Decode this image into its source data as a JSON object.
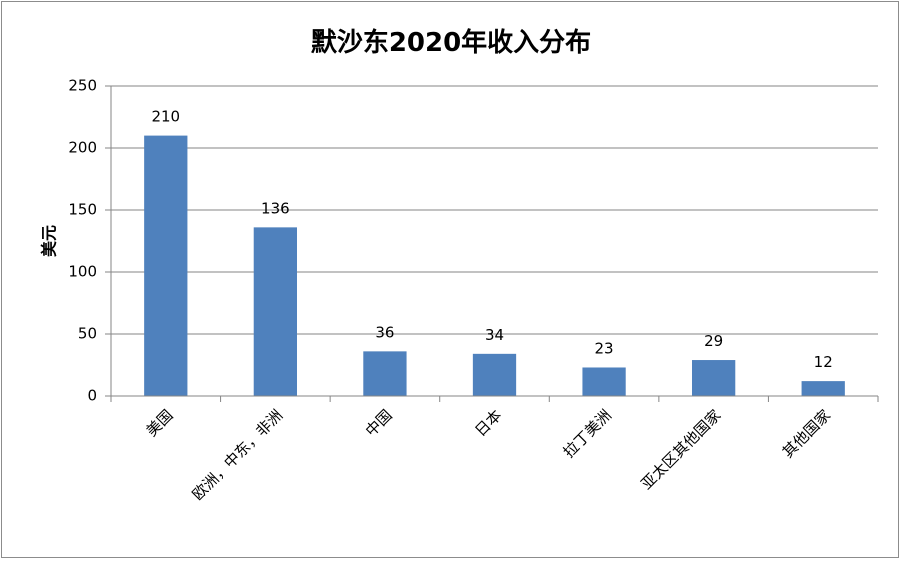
{
  "chart_data": {
    "type": "bar",
    "title": "默沙东2020年收入分布",
    "ylabel": "美元",
    "xlabel": "",
    "categories": [
      "美国",
      "欧洲，中东，非洲",
      "中国",
      "日本",
      "拉丁美洲",
      "亚太区其他国家",
      "其他国家"
    ],
    "values": [
      210,
      136,
      36,
      34,
      23,
      29,
      12
    ],
    "yticks": [
      "0",
      "50",
      "100",
      "150",
      "200",
      "250"
    ],
    "ylim": [
      0,
      250
    ],
    "grid": true,
    "legend": "none",
    "bar_color": "#4f81bd",
    "grid_color": "#868686"
  }
}
